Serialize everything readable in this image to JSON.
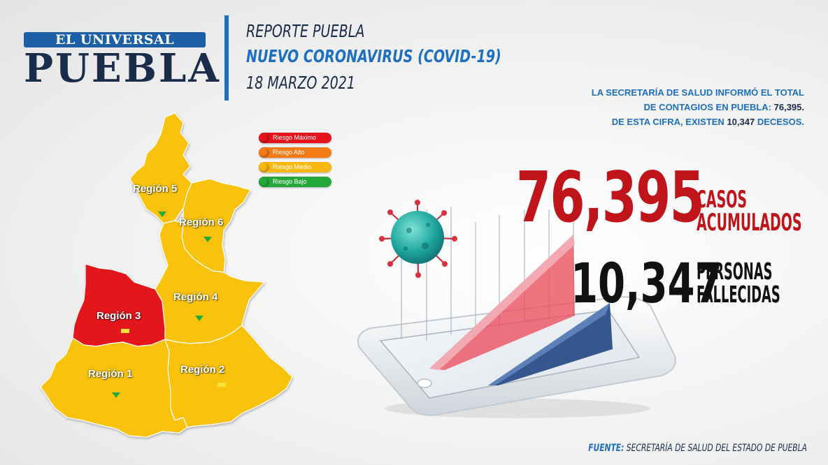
{
  "logo": {
    "small_text": "EL UNIVERSAL",
    "big_text": "PUEBLA"
  },
  "header": {
    "line1": "REPORTE PUEBLA",
    "line2": "NUEVO CORONAVIRUS (COVID-19)",
    "line3": "18 MARZO 2021"
  },
  "info": {
    "line1": "LA SECRETARÍA DE SALUD  INFORMÓ EL TOTAL",
    "line2_prefix": "DE CONTAGIOS EN PUEBLA: ",
    "line2_value": "76,395.",
    "line3_prefix": "DE ESTA CIFRA, EXISTEN ",
    "line3_value": "10,347",
    "line3_suffix": " DECESOS."
  },
  "legend": [
    {
      "label": "Riesgo Máximo",
      "color": "#e3141b"
    },
    {
      "label": "Riesgo Alto",
      "color": "#f47b16"
    },
    {
      "label": "Riesgo Medio",
      "color": "#f9b80f"
    },
    {
      "label": "Riesgo Bajo",
      "color": "#25a83a"
    }
  ],
  "stats": {
    "cases_value": "76,395",
    "cases_label_1": "CASOS",
    "cases_label_2": "ACUMULADOS",
    "deaths_value": "10,347",
    "deaths_label_1": "PERSONAS",
    "deaths_label_2": "FALLECIDAS"
  },
  "map": {
    "regions": [
      {
        "label": "Región 5",
        "risk": "Riesgo Medio",
        "trend": "down"
      },
      {
        "label": "Región 6",
        "risk": "Riesgo Medio",
        "trend": "down"
      },
      {
        "label": "Región 4",
        "risk": "Riesgo Medio",
        "trend": "down"
      },
      {
        "label": "Región 3",
        "risk": "Riesgo Máximo",
        "trend": "equal"
      },
      {
        "label": "Región 1",
        "risk": "Riesgo Medio",
        "trend": "down"
      },
      {
        "label": "Región 2",
        "risk": "Riesgo Medio",
        "trend": "equal"
      }
    ]
  },
  "footer": {
    "prefix": "FUENTE:",
    "text": " SECRETARÍA DE SALUD DEL ESTADO DE PUEBLA"
  },
  "colors": {
    "brand_blue": "#1d6fbf",
    "navy": "#1b2c4b",
    "cases_red": "#c0141b",
    "map_yellow": "#f9c20c",
    "map_red": "#e3141b"
  }
}
